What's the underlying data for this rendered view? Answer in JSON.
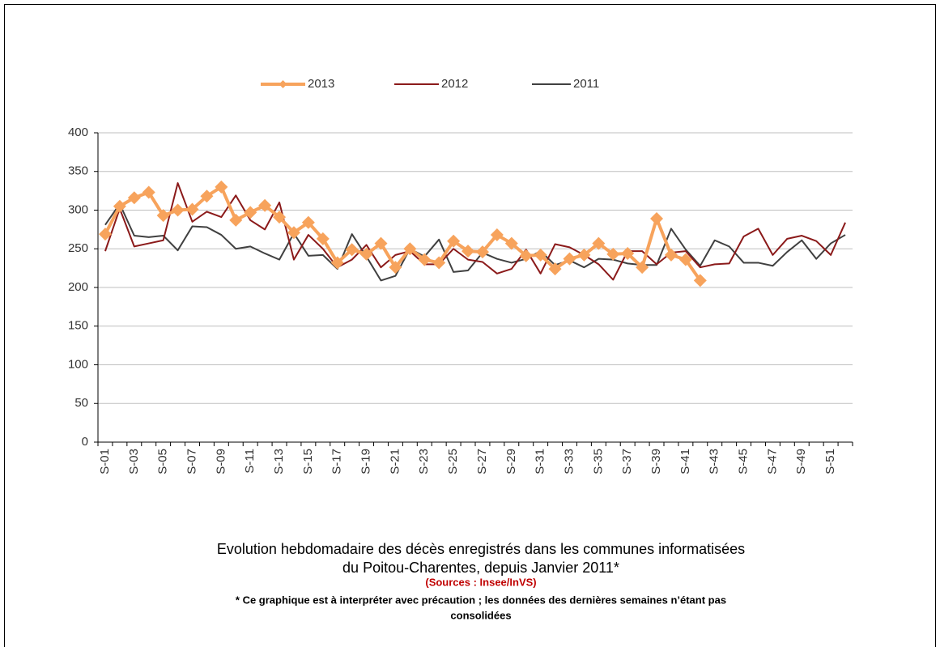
{
  "chart_data": {
    "type": "line",
    "title": [
      "Evolution hebdomadaire des décès enregistrés dans les communes informatisées",
      "du Poitou-Charentes, depuis Janvier  2011*"
    ],
    "subtitle": "(Sources : Insee/InVS)",
    "note": [
      "* Ce graphique est à interpréter avec précaution ; les données des dernières semaines n’étant pas",
      "consolidées"
    ],
    "categories": [
      "S-01",
      null,
      "S-03",
      null,
      "S-05",
      null,
      "S-07",
      null,
      "S-09",
      null,
      "S-11",
      null,
      "S-13",
      null,
      "S-15",
      null,
      "S-17",
      null,
      "S-19",
      null,
      "S-21",
      null,
      "S-23",
      null,
      "S-25",
      null,
      "S-27",
      null,
      "S-29",
      null,
      "S-31",
      null,
      "S-33",
      null,
      "S-35",
      null,
      "S-37",
      null,
      "S-39",
      null,
      "S-41",
      null,
      "S-43",
      null,
      "S-45",
      null,
      "S-47",
      null,
      "S-49",
      null,
      "S-51",
      null
    ],
    "series": [
      {
        "name": "2013",
        "color": "#f7a35c",
        "marker": "diamond",
        "values": [
          269,
          305,
          316,
          323,
          293,
          300,
          301,
          318,
          330,
          287,
          297,
          306,
          291,
          271,
          284,
          263,
          232,
          249,
          243,
          257,
          226,
          250,
          236,
          232,
          260,
          247,
          246,
          268,
          257,
          241,
          242,
          224,
          237,
          242,
          257,
          243,
          244,
          226,
          289,
          242,
          236,
          209,
          null,
          null,
          null,
          null,
          null,
          null,
          null,
          null,
          null,
          null
        ]
      },
      {
        "name": "2012",
        "color": "#8b1a1a",
        "values": [
          247,
          302,
          253,
          257,
          261,
          335,
          285,
          298,
          291,
          319,
          287,
          275,
          310,
          236,
          268,
          250,
          226,
          236,
          255,
          226,
          242,
          247,
          230,
          230,
          250,
          236,
          233,
          218,
          224,
          249,
          218,
          256,
          252,
          242,
          230,
          210,
          247,
          247,
          230,
          245,
          247,
          226,
          230,
          231,
          266,
          276,
          242,
          263,
          267,
          260,
          242,
          284
        ]
      },
      {
        "name": "2011",
        "color": "#404040",
        "values": [
          281,
          308,
          267,
          265,
          267,
          248,
          279,
          278,
          268,
          250,
          253,
          244,
          236,
          270,
          241,
          242,
          224,
          269,
          240,
          209,
          215,
          250,
          240,
          262,
          220,
          222,
          245,
          237,
          232,
          237,
          247,
          229,
          235,
          226,
          237,
          236,
          231,
          229,
          229,
          276,
          249,
          228,
          261,
          253,
          232,
          232,
          228,
          246,
          261,
          237,
          257,
          268
        ]
      }
    ],
    "ylim": [
      0,
      400
    ],
    "yticks": [
      0,
      50,
      100,
      150,
      200,
      250,
      300,
      350,
      400
    ],
    "grid": true
  }
}
